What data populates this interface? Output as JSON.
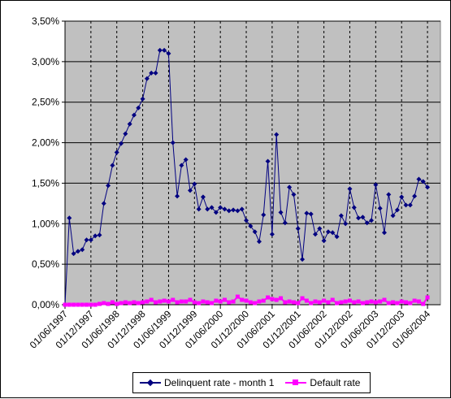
{
  "chart_data": {
    "type": "line",
    "title": "",
    "xlabel": "",
    "ylabel": "",
    "ylim": [
      0,
      0.035
    ],
    "y_ticks": [
      "0,00%",
      "0,50%",
      "1,00%",
      "1,50%",
      "2,00%",
      "2,50%",
      "3,00%",
      "3,50%"
    ],
    "x_ticks": [
      "01/06/1997",
      "01/12/1997",
      "01/06/1998",
      "01/12/1998",
      "01/06/1999",
      "01/12/1999",
      "01/06/2000",
      "01/12/2000",
      "01/06/2001",
      "01/12/2001",
      "01/06/2002",
      "01/12/2002",
      "01/06/2003",
      "01/12/2003",
      "01/06/2004"
    ],
    "x_start": "1997-06",
    "x_end": "2004-09",
    "grid": true,
    "legend_position": "bottom",
    "plot_background": "#c0c0c0",
    "series": [
      {
        "name": "Delinquent rate - month 1",
        "color": "#000080",
        "marker": "diamond",
        "values": [
          0.0,
          0.0107,
          0.0063,
          0.0066,
          0.0068,
          0.008,
          0.008,
          0.0085,
          0.0086,
          0.0125,
          0.0147,
          0.0172,
          0.0188,
          0.0199,
          0.0211,
          0.0223,
          0.0234,
          0.0243,
          0.0254,
          0.0279,
          0.0286,
          0.0286,
          0.0314,
          0.0314,
          0.031,
          0.02,
          0.0134,
          0.0172,
          0.0179,
          0.0141,
          0.0149,
          0.0118,
          0.0133,
          0.0118,
          0.012,
          0.0114,
          0.012,
          0.0118,
          0.0116,
          0.0117,
          0.0116,
          0.0118,
          0.0104,
          0.0097,
          0.009,
          0.0078,
          0.0111,
          0.0177,
          0.0087,
          0.021,
          0.0114,
          0.0101,
          0.0145,
          0.0136,
          0.0094,
          0.0056,
          0.0113,
          0.0112,
          0.0087,
          0.0094,
          0.0079,
          0.009,
          0.0089,
          0.0084,
          0.011,
          0.01,
          0.0143,
          0.012,
          0.0107,
          0.0108,
          0.0101,
          0.0104,
          0.0148,
          0.0119,
          0.0089,
          0.0136,
          0.011,
          0.0117,
          0.0133,
          0.0123,
          0.0123,
          0.0134,
          0.0155,
          0.0152,
          0.0145
        ]
      },
      {
        "name": "Default rate",
        "color": "#ff00ff",
        "marker": "square",
        "values": [
          0.0,
          0.0,
          0.0,
          0.0,
          0.0,
          0.0,
          0.0,
          0.0,
          0.0001,
          0.0002,
          0.0001,
          0.0003,
          0.0001,
          0.0002,
          0.0003,
          0.0002,
          0.0003,
          0.0002,
          0.0003,
          0.0004,
          0.0006,
          0.0003,
          0.0004,
          0.0005,
          0.0004,
          0.0006,
          0.0003,
          0.0004,
          0.0004,
          0.0006,
          0.0003,
          0.0002,
          0.0004,
          0.0003,
          0.0002,
          0.0005,
          0.0004,
          0.0006,
          0.0003,
          0.0004,
          0.001,
          0.0006,
          0.0005,
          0.0003,
          0.0002,
          0.0004,
          0.0005,
          0.0009,
          0.0007,
          0.0006,
          0.0008,
          0.0003,
          0.0004,
          0.0003,
          0.0002,
          0.0008,
          0.0005,
          0.0002,
          0.0004,
          0.0003,
          0.0005,
          0.0003,
          0.0006,
          0.0002,
          0.0003,
          0.0004,
          0.0005,
          0.0003,
          0.0004,
          0.0002,
          0.0003,
          0.0004,
          0.0003,
          0.0004,
          0.0006,
          0.0002,
          0.0003,
          0.0002,
          0.0004,
          0.0003,
          0.0002,
          0.0005,
          0.0004,
          0.0001,
          0.0009
        ]
      }
    ]
  }
}
